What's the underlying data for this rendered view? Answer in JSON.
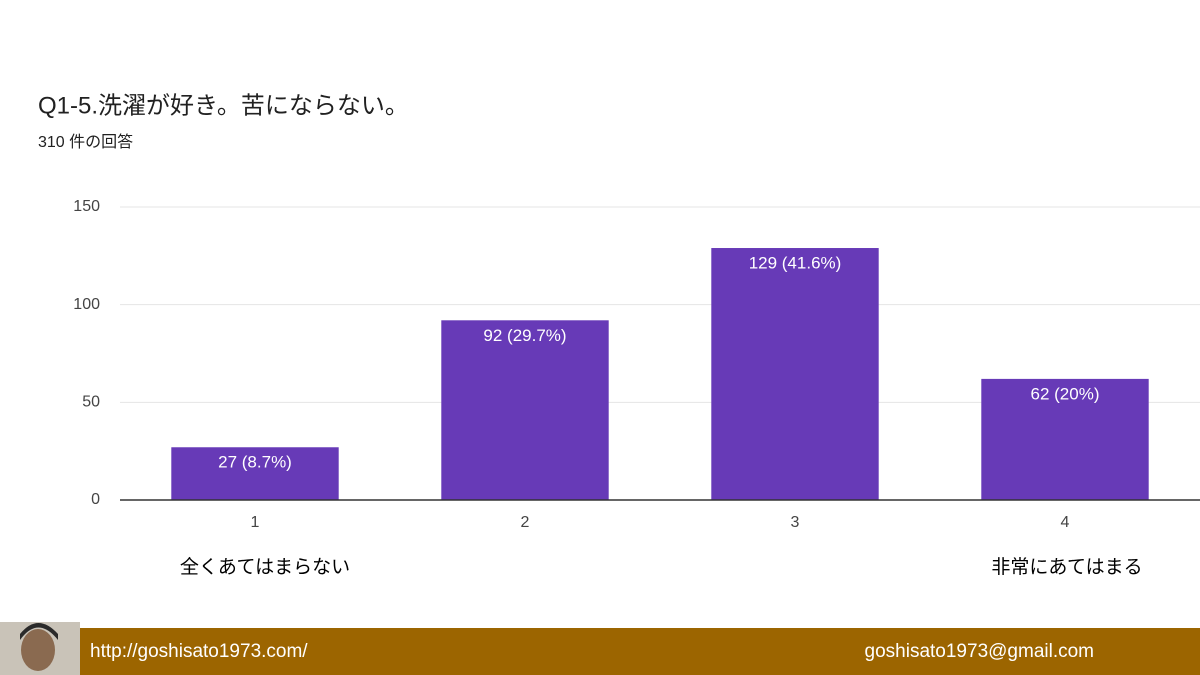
{
  "chart_data": {
    "type": "bar",
    "title": "Q1-5.洗濯が好き。苦にならない。",
    "subtitle": "310 件の回答",
    "categories": [
      "1",
      "2",
      "3",
      "4"
    ],
    "values": [
      27,
      92,
      129,
      62
    ],
    "value_labels": [
      "27 (8.7%)",
      "92 (29.7%)",
      "129 (41.6%)",
      "62 (20%)"
    ],
    "color": "#673ab7",
    "ylim": [
      0,
      150
    ],
    "yticks": [
      0,
      50,
      100,
      150
    ],
    "grid": true,
    "scale_labels": {
      "low": "全くあてはまらない",
      "high": "非常にあてはまる"
    }
  },
  "footer": {
    "url": "http://goshisato1973.com/",
    "email": "goshisato1973@gmail.com"
  }
}
